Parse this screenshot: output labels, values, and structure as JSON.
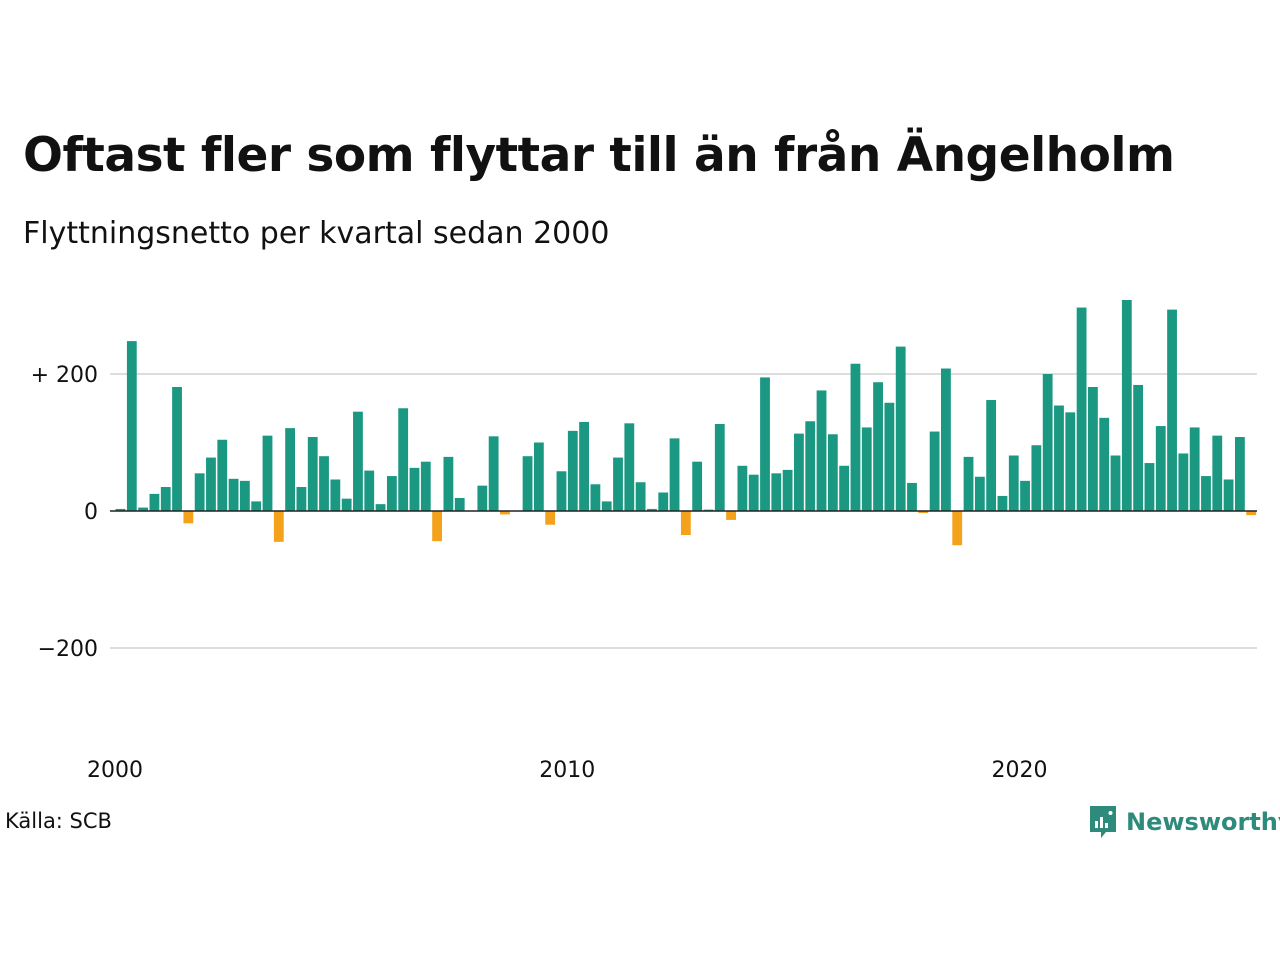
{
  "title": "Oftast fler som flyttar till än från Ängelholm",
  "subtitle": "Flyttningsnetto per kvartal sedan 2000",
  "source": "Källa: SCB",
  "brand": "Newsworthy",
  "colors": {
    "positive": "#1a9882",
    "negative": "#f4a11c",
    "grid": "#dddddd",
    "baseline": "#222222",
    "brand": "#2e8b7b"
  },
  "chart_data": {
    "type": "bar",
    "y_ticks": [
      {
        "value": 200,
        "label": "+ 200"
      },
      {
        "value": 0,
        "label": "0"
      },
      {
        "value": -200,
        "label": "−200"
      }
    ],
    "x_ticks": [
      {
        "value": 2000,
        "label": "2000"
      },
      {
        "value": 2010,
        "label": "2010"
      },
      {
        "value": 2020,
        "label": "2020"
      }
    ],
    "ylim": [
      -330,
      310
    ],
    "xlim": [
      2000,
      2025.25
    ],
    "grid": true,
    "series": [
      {
        "start": 2000,
        "step": 0.25,
        "values": [
          3,
          248,
          5,
          25,
          35,
          181,
          -18,
          55,
          78,
          104,
          47,
          44,
          14,
          110,
          -45,
          121,
          35,
          108,
          80,
          46,
          18,
          145,
          59,
          10,
          51,
          150,
          63,
          72,
          -44,
          79,
          19,
          0,
          37,
          109,
          -5,
          0,
          80,
          100,
          -20,
          58,
          117,
          130,
          39,
          14,
          78,
          128,
          42,
          3,
          27,
          106,
          -35,
          72,
          2,
          127,
          -13,
          66,
          53,
          195,
          55,
          60,
          113,
          131,
          176,
          112,
          66,
          215,
          122,
          188,
          158,
          240,
          41,
          -3,
          116,
          208,
          -50,
          79,
          50,
          162,
          22,
          81,
          44,
          96,
          200,
          154,
          144,
          297,
          181,
          136,
          81,
          308,
          184,
          70,
          124,
          294,
          84,
          122,
          51,
          110,
          46,
          108,
          -6
        ]
      }
    ]
  }
}
